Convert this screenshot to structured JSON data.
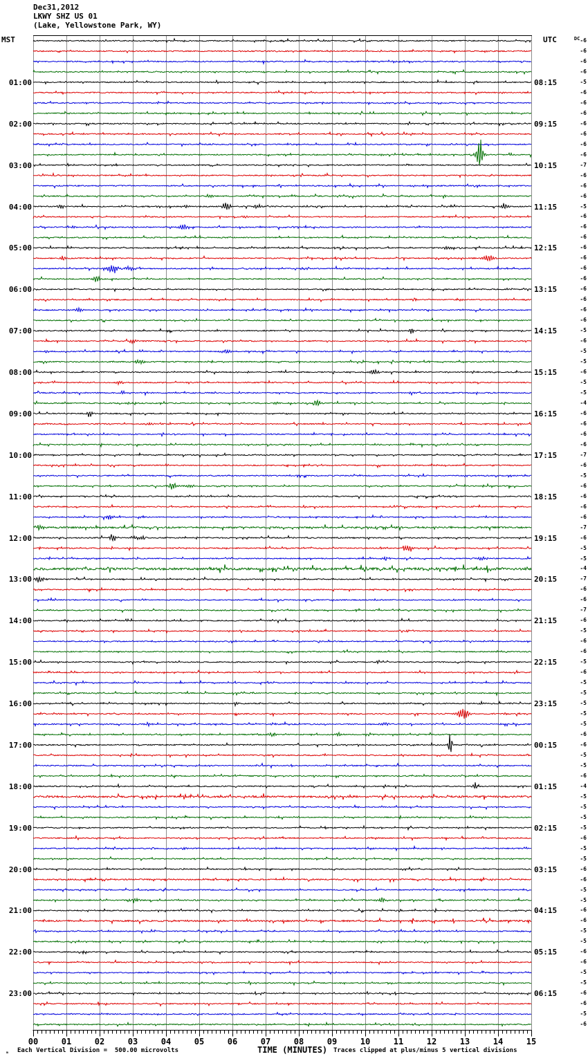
{
  "header": {
    "date": "Dec31,2012",
    "station": "LKWY SHZ US 01",
    "location": "(Lake, Yellowstone Park, WY)",
    "left_timezone": "MST",
    "right_timezone": "UTC"
  },
  "footer": {
    "mark": "ₘ",
    "scale_note": "Each Vertical Division =  500.00 microvolts",
    "time_axis_label": "TIME (MINUTES)",
    "clip_note": "Traces clipped at plus/minus 5 vertical divisions"
  },
  "chart_data": {
    "type": "line",
    "subtype": "helicorder-seismogram",
    "title": "Dec31,2012 LKWY SHZ US 01 (Lake, Yellowstone Park, WY)",
    "xlabel": "TIME (MINUTES)",
    "x_range_minutes": [
      0,
      15
    ],
    "x_tick_labels": [
      "00",
      "01",
      "02",
      "03",
      "04",
      "05",
      "06",
      "07",
      "08",
      "09",
      "10",
      "11",
      "12",
      "13",
      "14",
      "15"
    ],
    "minor_ticks_per_minute": 8,
    "trace_count": 96,
    "minutes_per_trace": 15,
    "trace_color_cycle": [
      "#000000",
      "#dd0000",
      "#0000dd",
      "#006e00"
    ],
    "grid_color": "#8c8c8c",
    "dc_label": "DC",
    "row_labels_left": [
      "01:00",
      "02:00",
      "03:00",
      "04:00",
      "05:00",
      "06:00",
      "07:00",
      "08:00",
      "09:00",
      "10:00",
      "11:00",
      "12:00",
      "13:00",
      "14:00",
      "15:00",
      "16:00",
      "17:00",
      "18:00",
      "19:00",
      "20:00",
      "21:00",
      "22:00",
      "23:00"
    ],
    "row_labels_right": [
      "08:15",
      "09:15",
      "10:15",
      "11:15",
      "12:15",
      "13:15",
      "14:15",
      "15:15",
      "16:15",
      "17:15",
      "18:15",
      "19:15",
      "20:15",
      "21:15",
      "22:15",
      "23:15",
      "00:15",
      "01:15",
      "02:15",
      "03:15",
      "04:15",
      "05:15",
      "06:15"
    ],
    "label_every_n_rows": 4,
    "dc_offsets": [
      "-6",
      "-6",
      "-6",
      "-6",
      "-5",
      "-6",
      "-6",
      "-6",
      "-6",
      "-6",
      "-6",
      "-6",
      "-7",
      "-6",
      "-6",
      "-6",
      "-5",
      "-6",
      "-6",
      "-6",
      "-6",
      "-6",
      "-6",
      "-6",
      "-6",
      "-6",
      "-6",
      "-6",
      "-5",
      "-6",
      "-5",
      "-5",
      "-6",
      "-5",
      "-5",
      "-4",
      "-6",
      "-6",
      "-6",
      "-6",
      "-7",
      "-6",
      "-5",
      "-6",
      "-6",
      "-6",
      "-6",
      "-7",
      "-6",
      "-5",
      "-5",
      "-4",
      "-7",
      "-6",
      "-6",
      "-7",
      "-6",
      "-5",
      "-6",
      "-6",
      "-5",
      "-6",
      "-5",
      "-5",
      "-5",
      "-5",
      "-5",
      "-6",
      "-6",
      "-5",
      "-5",
      "-6",
      "-4",
      "-5",
      "-5",
      "-5",
      "-5",
      "-6",
      "-5",
      "-5",
      "-6",
      "-6",
      "-5",
      "-5",
      "-6",
      "-6",
      "-5",
      "-5",
      "-6",
      "-6",
      "-5",
      "-5",
      "-6",
      "-6",
      "-5",
      "-6"
    ],
    "events": [
      {
        "r": 11,
        "m": 13.45,
        "a": 26,
        "w": 1.2
      },
      {
        "r": 11,
        "m": 13.45,
        "a": 8,
        "w": 2.5
      },
      {
        "r": 15,
        "m": 5.3,
        "a": 3,
        "w": 2
      },
      {
        "r": 16,
        "m": 0.85,
        "a": 4,
        "w": 1.5
      },
      {
        "r": 16,
        "m": 4.6,
        "a": 3,
        "w": 2
      },
      {
        "r": 16,
        "m": 5.8,
        "a": 6,
        "w": 2.5
      },
      {
        "r": 16,
        "m": 6.75,
        "a": 4,
        "w": 2
      },
      {
        "r": 16,
        "m": 14.2,
        "a": 5,
        "w": 2
      },
      {
        "r": 17,
        "m": 6.4,
        "a": 3,
        "w": 1.5
      },
      {
        "r": 18,
        "m": 1.2,
        "a": 3,
        "w": 1.2
      },
      {
        "r": 18,
        "m": 4.5,
        "a": 4,
        "w": 2.5
      },
      {
        "r": 20,
        "m": 12.5,
        "a": 3,
        "w": 2
      },
      {
        "r": 21,
        "m": 0.9,
        "a": 3.5,
        "w": 1.5
      },
      {
        "r": 21,
        "m": 13.7,
        "a": 7,
        "w": 3
      },
      {
        "r": 22,
        "m": 2.4,
        "a": 8,
        "w": 3
      },
      {
        "r": 22,
        "m": 2.9,
        "a": 3,
        "w": 3
      },
      {
        "r": 23,
        "m": 1.9,
        "a": 5,
        "w": 2.5
      },
      {
        "r": 25,
        "m": 9.0,
        "a": 2.5,
        "w": 1.5
      },
      {
        "r": 25,
        "m": 11.5,
        "a": 3,
        "w": 1.5
      },
      {
        "r": 26,
        "m": 1.35,
        "a": 4,
        "w": 2
      },
      {
        "r": 28,
        "m": 11.4,
        "a": 5,
        "w": 1.5
      },
      {
        "r": 29,
        "m": 3.0,
        "a": 3.5,
        "w": 2
      },
      {
        "r": 30,
        "m": 0.4,
        "a": 3,
        "w": 1.2
      },
      {
        "r": 30,
        "m": 5.85,
        "a": 4,
        "w": 2.2
      },
      {
        "r": 31,
        "m": 3.2,
        "a": 5,
        "w": 2
      },
      {
        "r": 32,
        "m": 10.3,
        "a": 4,
        "w": 2.5
      },
      {
        "r": 33,
        "m": 2.6,
        "a": 3.5,
        "w": 2
      },
      {
        "r": 34,
        "m": 2.7,
        "a": 3,
        "w": 1.5
      },
      {
        "r": 34,
        "m": 11.4,
        "a": 3.5,
        "w": 1.8
      },
      {
        "r": 35,
        "m": 2.9,
        "a": 2.5,
        "w": 1.5
      },
      {
        "r": 35,
        "m": 7.3,
        "a": 3,
        "w": 1.5
      },
      {
        "r": 35,
        "m": 8.55,
        "a": 7,
        "w": 1.8
      },
      {
        "r": 36,
        "m": 1.7,
        "a": 7,
        "w": 1.2
      },
      {
        "r": 37,
        "m": 3.5,
        "a": 3,
        "w": 1.5
      },
      {
        "r": 43,
        "m": 4.2,
        "a": 6,
        "w": 2.5
      },
      {
        "r": 43,
        "m": 4.7,
        "a": 2.5,
        "w": 3
      },
      {
        "r": 46,
        "m": 2.3,
        "a": 4,
        "w": 2
      },
      {
        "r": 47,
        "m": 0.2,
        "a": 4,
        "w": 2.5
      },
      {
        "r": 48,
        "m": 2.4,
        "a": 6,
        "w": 2
      },
      {
        "r": 48,
        "m": 3.2,
        "a": 3,
        "w": 4
      },
      {
        "r": 49,
        "m": 11.3,
        "a": 6,
        "w": 2.5
      },
      {
        "r": 50,
        "m": 10.6,
        "a": 3,
        "w": 2
      },
      {
        "r": 50,
        "m": 13.5,
        "a": 3,
        "w": 3
      },
      {
        "r": 52,
        "m": 0.2,
        "a": 5,
        "w": 2.5
      },
      {
        "r": 64,
        "m": 6.1,
        "a": 4,
        "w": 1.2
      },
      {
        "r": 64,
        "m": 13.5,
        "a": 3,
        "w": 1.2
      },
      {
        "r": 65,
        "m": 0.75,
        "a": 3,
        "w": 1.5
      },
      {
        "r": 65,
        "m": 12.95,
        "a": 9,
        "w": 3
      },
      {
        "r": 66,
        "m": 3.5,
        "a": 3,
        "w": 2
      },
      {
        "r": 66,
        "m": 10.6,
        "a": 3.5,
        "w": 2.5
      },
      {
        "r": 67,
        "m": 7.2,
        "a": 3,
        "w": 2
      },
      {
        "r": 67,
        "m": 9.2,
        "a": 3,
        "w": 2
      },
      {
        "r": 68,
        "m": 12.55,
        "a": 24,
        "w": 0.9
      },
      {
        "r": 72,
        "m": 13.3,
        "a": 6,
        "w": 1.2
      },
      {
        "r": 78,
        "m": 4.55,
        "a": 3,
        "w": 2
      },
      {
        "r": 83,
        "m": 3.1,
        "a": 3,
        "w": 2
      },
      {
        "r": 83,
        "m": 10.5,
        "a": 4,
        "w": 2.5
      }
    ],
    "dense_rows": {
      "47": 1.5,
      "51": 2.2,
      "73": 1.7,
      "81": 1.2,
      "85": 1.5
    }
  }
}
